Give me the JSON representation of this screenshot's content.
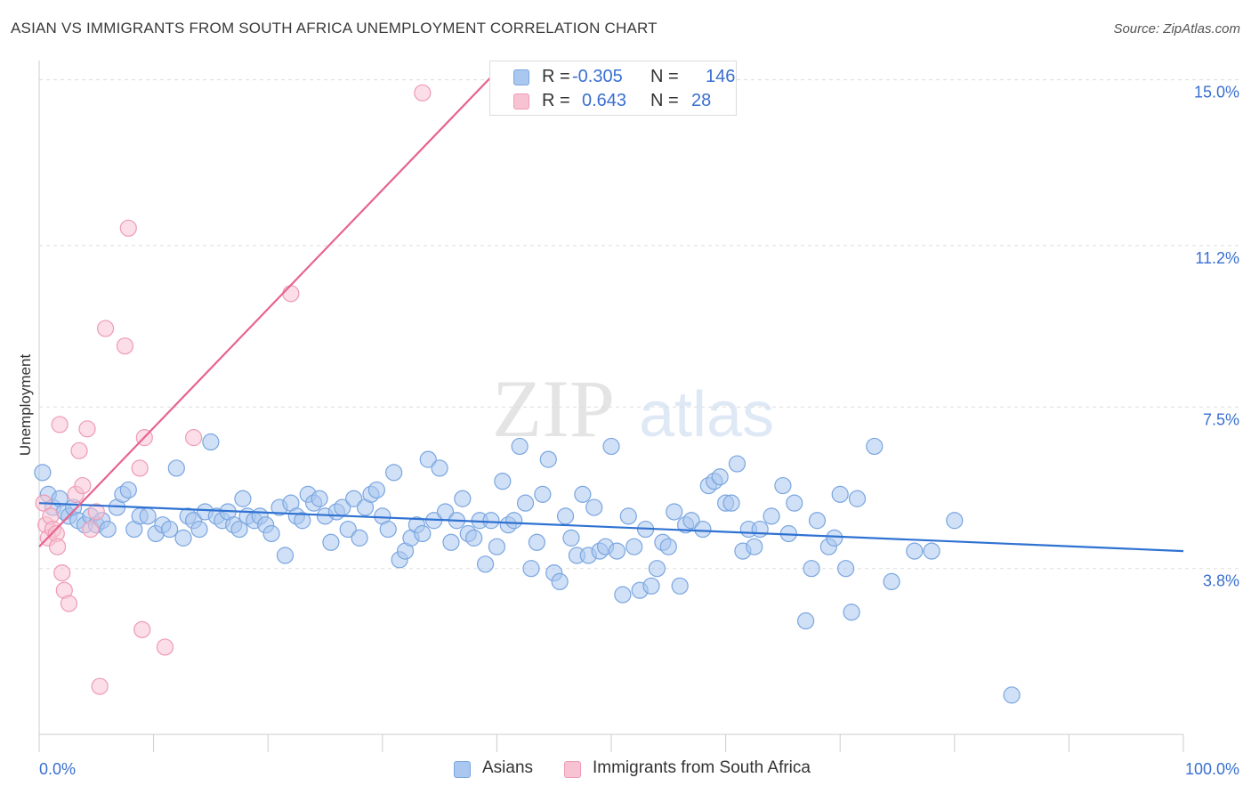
{
  "title": "ASIAN VS IMMIGRANTS FROM SOUTH AFRICA UNEMPLOYMENT CORRELATION CHART",
  "source": "Source: ZipAtlas.com",
  "watermark": {
    "zip": "ZIP",
    "atlas": "atlas"
  },
  "legend": {
    "r_label": "R =",
    "n_label": "N =",
    "asians": {
      "r": "-0.305",
      "n": "146"
    },
    "immigrants": {
      "r": "0.643",
      "n": "28"
    }
  },
  "chart_data": {
    "type": "scatter",
    "title": "ASIAN VS IMMIGRANTS FROM SOUTH AFRICA UNEMPLOYMENT CORRELATION CHART",
    "xlabel": "",
    "ylabel": "Unemployment",
    "xlim": [
      0,
      100
    ],
    "ylim": [
      0,
      15.4
    ],
    "x_tick_labels": [
      "0.0%",
      "100.0%"
    ],
    "y_ticks": [
      3.8,
      7.5,
      11.2,
      15.0
    ],
    "y_tick_labels": [
      "3.8%",
      "7.5%",
      "11.2%",
      "15.0%"
    ],
    "grid": "horizontal dashed",
    "legend_placement": "top-center and bottom",
    "colors": {
      "asians_fill": "#a9c7ef",
      "asians_stroke": "#7aa6e0",
      "asians_line": "#2f72d2",
      "immig_fill": "#f7c3d3",
      "immig_stroke": "#ee9bb5",
      "immig_line": "#e8638f",
      "tick_label": "#3a6fd0",
      "grid": "#dddddd"
    },
    "series": [
      {
        "name": "Asians",
        "trend": {
          "x": [
            0,
            100
          ],
          "y": [
            5.3,
            4.2
          ]
        },
        "points": [
          [
            0.3,
            6.0
          ],
          [
            0.8,
            5.5
          ],
          [
            1.2,
            5.2
          ],
          [
            1.8,
            5.4
          ],
          [
            2.2,
            5.1
          ],
          [
            2.6,
            5.0
          ],
          [
            3.0,
            5.2
          ],
          [
            3.4,
            4.9
          ],
          [
            4.0,
            4.8
          ],
          [
            4.5,
            5.0
          ],
          [
            5.0,
            4.8
          ],
          [
            5.5,
            4.9
          ],
          [
            6.0,
            4.7
          ],
          [
            6.8,
            5.2
          ],
          [
            7.3,
            5.5
          ],
          [
            7.8,
            5.6
          ],
          [
            8.3,
            4.7
          ],
          [
            8.8,
            5.0
          ],
          [
            9.5,
            5.0
          ],
          [
            10.2,
            4.6
          ],
          [
            10.8,
            4.8
          ],
          [
            11.4,
            4.7
          ],
          [
            12.0,
            6.1
          ],
          [
            12.6,
            4.5
          ],
          [
            13.0,
            5.0
          ],
          [
            13.5,
            4.9
          ],
          [
            14.0,
            4.7
          ],
          [
            14.5,
            5.1
          ],
          [
            15.0,
            6.7
          ],
          [
            15.5,
            5.0
          ],
          [
            16.0,
            4.9
          ],
          [
            16.5,
            5.1
          ],
          [
            17.0,
            4.8
          ],
          [
            17.5,
            4.7
          ],
          [
            17.8,
            5.4
          ],
          [
            18.2,
            5.0
          ],
          [
            18.8,
            4.9
          ],
          [
            19.3,
            5.0
          ],
          [
            19.8,
            4.8
          ],
          [
            20.3,
            4.6
          ],
          [
            21.0,
            5.2
          ],
          [
            21.5,
            4.1
          ],
          [
            22.0,
            5.3
          ],
          [
            22.5,
            5.0
          ],
          [
            23.0,
            4.9
          ],
          [
            23.5,
            5.5
          ],
          [
            24.0,
            5.3
          ],
          [
            24.5,
            5.4
          ],
          [
            25.0,
            5.0
          ],
          [
            25.5,
            4.4
          ],
          [
            26.0,
            5.1
          ],
          [
            26.5,
            5.2
          ],
          [
            27.0,
            4.7
          ],
          [
            27.5,
            5.4
          ],
          [
            28.0,
            4.5
          ],
          [
            28.5,
            5.2
          ],
          [
            29.0,
            5.5
          ],
          [
            29.5,
            5.6
          ],
          [
            30.0,
            5.0
          ],
          [
            30.5,
            4.7
          ],
          [
            31.0,
            6.0
          ],
          [
            31.5,
            4.0
          ],
          [
            32.0,
            4.2
          ],
          [
            32.5,
            4.5
          ],
          [
            33.0,
            4.8
          ],
          [
            33.5,
            4.6
          ],
          [
            34.0,
            6.3
          ],
          [
            34.5,
            4.9
          ],
          [
            35.0,
            6.1
          ],
          [
            35.5,
            5.1
          ],
          [
            36.0,
            4.4
          ],
          [
            36.5,
            4.9
          ],
          [
            37.0,
            5.4
          ],
          [
            37.5,
            4.6
          ],
          [
            38.0,
            4.5
          ],
          [
            38.5,
            4.9
          ],
          [
            39.0,
            3.9
          ],
          [
            39.5,
            4.9
          ],
          [
            40.0,
            4.3
          ],
          [
            40.5,
            5.8
          ],
          [
            41.0,
            4.8
          ],
          [
            41.5,
            4.9
          ],
          [
            42.0,
            6.6
          ],
          [
            42.5,
            5.3
          ],
          [
            43.0,
            3.8
          ],
          [
            43.5,
            4.4
          ],
          [
            44.0,
            5.5
          ],
          [
            44.5,
            6.3
          ],
          [
            45.0,
            3.7
          ],
          [
            45.5,
            3.5
          ],
          [
            46.0,
            5.0
          ],
          [
            46.5,
            4.5
          ],
          [
            47.0,
            4.1
          ],
          [
            47.5,
            5.5
          ],
          [
            48.0,
            4.1
          ],
          [
            48.5,
            5.2
          ],
          [
            49.0,
            4.2
          ],
          [
            49.5,
            4.3
          ],
          [
            50.0,
            6.6
          ],
          [
            50.5,
            4.2
          ],
          [
            51.0,
            3.2
          ],
          [
            51.5,
            5.0
          ],
          [
            52.0,
            4.3
          ],
          [
            52.5,
            3.3
          ],
          [
            53.0,
            4.7
          ],
          [
            53.5,
            3.4
          ],
          [
            54.0,
            3.8
          ],
          [
            54.5,
            4.4
          ],
          [
            55.0,
            4.3
          ],
          [
            55.5,
            5.1
          ],
          [
            56.0,
            3.4
          ],
          [
            56.5,
            4.8
          ],
          [
            57.0,
            4.9
          ],
          [
            58.0,
            4.7
          ],
          [
            58.5,
            5.7
          ],
          [
            59.0,
            5.8
          ],
          [
            59.5,
            5.9
          ],
          [
            60.0,
            5.3
          ],
          [
            60.5,
            5.3
          ],
          [
            61.0,
            6.2
          ],
          [
            61.5,
            4.2
          ],
          [
            62.0,
            4.7
          ],
          [
            62.5,
            4.3
          ],
          [
            63.0,
            4.7
          ],
          [
            64.0,
            5.0
          ],
          [
            65.0,
            5.7
          ],
          [
            65.5,
            4.6
          ],
          [
            66.0,
            5.3
          ],
          [
            67.0,
            2.6
          ],
          [
            67.5,
            3.8
          ],
          [
            68.0,
            4.9
          ],
          [
            69.0,
            4.3
          ],
          [
            69.5,
            4.5
          ],
          [
            70.0,
            5.5
          ],
          [
            70.5,
            3.8
          ],
          [
            71.0,
            2.8
          ],
          [
            71.5,
            5.4
          ],
          [
            73.0,
            6.6
          ],
          [
            74.5,
            3.5
          ],
          [
            76.5,
            4.2
          ],
          [
            78.0,
            4.2
          ],
          [
            80.0,
            4.9
          ],
          [
            85.0,
            0.9
          ]
        ]
      },
      {
        "name": "Immigrants from South Africa",
        "trend": {
          "x": [
            0,
            40
          ],
          "y": [
            4.3,
            15.2
          ]
        },
        "points": [
          [
            0.4,
            5.3
          ],
          [
            0.6,
            4.8
          ],
          [
            0.8,
            4.5
          ],
          [
            1.0,
            5.0
          ],
          [
            1.2,
            4.7
          ],
          [
            1.5,
            4.6
          ],
          [
            1.6,
            4.3
          ],
          [
            1.8,
            7.1
          ],
          [
            2.0,
            3.7
          ],
          [
            2.2,
            3.3
          ],
          [
            2.6,
            3.0
          ],
          [
            3.2,
            5.5
          ],
          [
            3.5,
            6.5
          ],
          [
            3.8,
            5.7
          ],
          [
            4.2,
            7.0
          ],
          [
            4.5,
            4.7
          ],
          [
            5.0,
            5.1
          ],
          [
            5.3,
            1.1
          ],
          [
            5.8,
            9.3
          ],
          [
            7.5,
            8.9
          ],
          [
            7.8,
            11.6
          ],
          [
            8.8,
            6.1
          ],
          [
            9.0,
            2.4
          ],
          [
            9.2,
            6.8
          ],
          [
            11.0,
            2.0
          ],
          [
            13.5,
            6.8
          ],
          [
            22.0,
            10.1
          ],
          [
            33.5,
            14.7
          ]
        ]
      }
    ]
  }
}
